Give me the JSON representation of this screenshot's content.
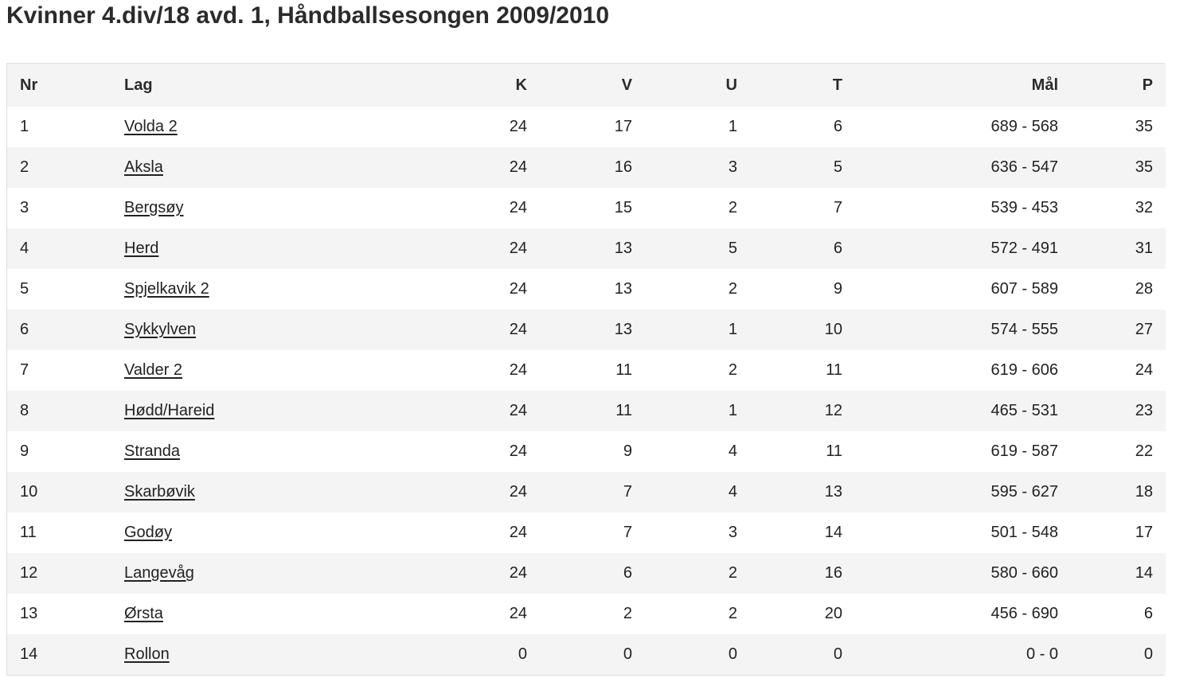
{
  "page": {
    "title": "Kvinner 4.div/18 avd. 1, Håndballsesongen 2009/2010"
  },
  "table": {
    "headers": {
      "nr": "Nr",
      "lag": "Lag",
      "k": "K",
      "v": "V",
      "u": "U",
      "t": "T",
      "mal": "Mål",
      "p": "P"
    },
    "rows": [
      {
        "nr": "1",
        "lag": "Volda 2",
        "k": "24",
        "v": "17",
        "u": "1",
        "t": "6",
        "mal": "689 - 568",
        "p": "35"
      },
      {
        "nr": "2",
        "lag": "Aksla",
        "k": "24",
        "v": "16",
        "u": "3",
        "t": "5",
        "mal": "636 - 547",
        "p": "35"
      },
      {
        "nr": "3",
        "lag": "Bergsøy",
        "k": "24",
        "v": "15",
        "u": "2",
        "t": "7",
        "mal": "539 - 453",
        "p": "32"
      },
      {
        "nr": "4",
        "lag": "Herd",
        "k": "24",
        "v": "13",
        "u": "5",
        "t": "6",
        "mal": "572 - 491",
        "p": "31"
      },
      {
        "nr": "5",
        "lag": "Spjelkavik 2",
        "k": "24",
        "v": "13",
        "u": "2",
        "t": "9",
        "mal": "607 - 589",
        "p": "28"
      },
      {
        "nr": "6",
        "lag": "Sykkylven",
        "k": "24",
        "v": "13",
        "u": "1",
        "t": "10",
        "mal": "574 - 555",
        "p": "27"
      },
      {
        "nr": "7",
        "lag": "Valder 2",
        "k": "24",
        "v": "11",
        "u": "2",
        "t": "11",
        "mal": "619 - 606",
        "p": "24"
      },
      {
        "nr": "8",
        "lag": "Hødd/Hareid",
        "k": "24",
        "v": "11",
        "u": "1",
        "t": "12",
        "mal": "465 - 531",
        "p": "23"
      },
      {
        "nr": "9",
        "lag": "Stranda",
        "k": "24",
        "v": "9",
        "u": "4",
        "t": "11",
        "mal": "619 - 587",
        "p": "22"
      },
      {
        "nr": "10",
        "lag": "Skarbøvik",
        "k": "24",
        "v": "7",
        "u": "4",
        "t": "13",
        "mal": "595 - 627",
        "p": "18"
      },
      {
        "nr": "11",
        "lag": "Godøy",
        "k": "24",
        "v": "7",
        "u": "3",
        "t": "14",
        "mal": "501 - 548",
        "p": "17"
      },
      {
        "nr": "12",
        "lag": "Langevåg",
        "k": "24",
        "v": "6",
        "u": "2",
        "t": "16",
        "mal": "580 - 660",
        "p": "14"
      },
      {
        "nr": "13",
        "lag": "Ørsta",
        "k": "24",
        "v": "2",
        "u": "2",
        "t": "20",
        "mal": "456 - 690",
        "p": "6"
      },
      {
        "nr": "14",
        "lag": "Rollon",
        "k": "0",
        "v": "0",
        "u": "0",
        "t": "0",
        "mal": "0 - 0",
        "p": "0"
      }
    ]
  }
}
